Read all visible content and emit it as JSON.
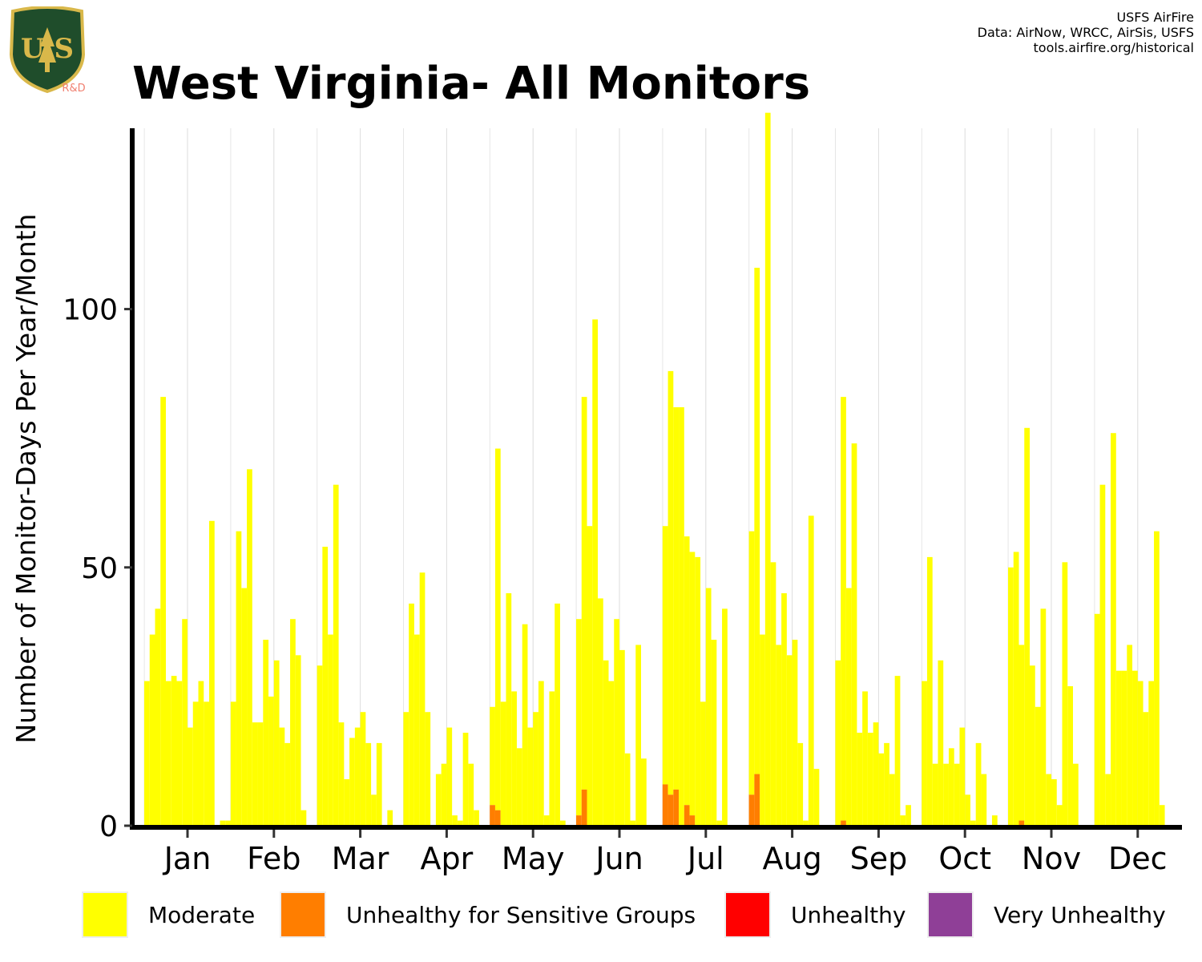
{
  "header": {
    "title": "West Virginia- All Monitors",
    "logo_text": "U S",
    "logo_badge_text": "R&D",
    "credits": [
      "USFS AirFire",
      "Data: AirNow, WRCC, AirSis, USFS",
      "tools.airfire.org/historical"
    ]
  },
  "colors": {
    "moderate": "#FFFF00",
    "usg": "#FF7E00",
    "unhealthy": "#FF0000",
    "very_unhealthy": "#8F3F97",
    "logo_green": "#1f4d2b",
    "logo_gold": "#d9b84a",
    "badge_text": "#f08070"
  },
  "chart_data": {
    "type": "bar",
    "stacked": true,
    "title": "West Virginia- All Monitors",
    "xlabel": "",
    "ylabel": "Number of Monitor-Days Per Year/Month",
    "ylim": [
      0,
      135
    ],
    "yticks": [
      0,
      50,
      100
    ],
    "grid": "vertical minor lines",
    "legend_position": "bottom",
    "months": [
      "Jan",
      "Feb",
      "Mar",
      "Apr",
      "May",
      "Jun",
      "Jul",
      "Aug",
      "Sep",
      "Oct",
      "Nov",
      "Dec"
    ],
    "series": [
      {
        "name": "Moderate",
        "values_by_month": [
          [
            28,
            37,
            42,
            83,
            28,
            29,
            28,
            40,
            19,
            24,
            28,
            24,
            59,
            0,
            1,
            1
          ],
          [
            24,
            57,
            46,
            69,
            20,
            20,
            36,
            25,
            32,
            19,
            16,
            40,
            33,
            3,
            0,
            0
          ],
          [
            31,
            54,
            37,
            66,
            20,
            9,
            17,
            19,
            22,
            16,
            6,
            16,
            0,
            3,
            0,
            0
          ],
          [
            22,
            43,
            37,
            49,
            22,
            0,
            10,
            12,
            19,
            2,
            1,
            18,
            12,
            3,
            0,
            0
          ],
          [
            19,
            70,
            24,
            45,
            26,
            15,
            39,
            19,
            22,
            28,
            2,
            26,
            43,
            1,
            0,
            0
          ],
          [
            38,
            76,
            58,
            98,
            44,
            32,
            28,
            40,
            34,
            14,
            1,
            35,
            13,
            0,
            0,
            0
          ],
          [
            50,
            82,
            74,
            81,
            52,
            51,
            52,
            24,
            46,
            36,
            1,
            42,
            0,
            0,
            0,
            0
          ],
          [
            51,
            98,
            37,
            138,
            51,
            35,
            45,
            33,
            36,
            16,
            1,
            60,
            11,
            0,
            0,
            0
          ],
          [
            32,
            82,
            46,
            74,
            18,
            26,
            18,
            20,
            14,
            16,
            10,
            29,
            2,
            4,
            0,
            0
          ],
          [
            28,
            52,
            12,
            32,
            12,
            15,
            12,
            19,
            6,
            1,
            16,
            10,
            0,
            2,
            0,
            0
          ],
          [
            50,
            53,
            34,
            77,
            31,
            23,
            42,
            10,
            9,
            4,
            51,
            27,
            12,
            0,
            0,
            0
          ],
          [
            41,
            66,
            10,
            76,
            30,
            30,
            35,
            30,
            28,
            22,
            28,
            57,
            4,
            0,
            0,
            0
          ]
        ]
      },
      {
        "name": "Unhealthy for Sensitive Groups",
        "values_by_month": [
          [
            0,
            0,
            0,
            0,
            0,
            0,
            0,
            0,
            0,
            0,
            0,
            0,
            0,
            0,
            0,
            0
          ],
          [
            0,
            0,
            0,
            0,
            0,
            0,
            0,
            0,
            0,
            0,
            0,
            0,
            0,
            0,
            0,
            0
          ],
          [
            0,
            0,
            0,
            0,
            0,
            0,
            0,
            0,
            0,
            0,
            0,
            0,
            0,
            0,
            0,
            0
          ],
          [
            0,
            0,
            0,
            0,
            0,
            0,
            0,
            0,
            0,
            0,
            0,
            0,
            0,
            0,
            0,
            0
          ],
          [
            4,
            3,
            0,
            0,
            0,
            0,
            0,
            0,
            0,
            0,
            0,
            0,
            0,
            0,
            0,
            0
          ],
          [
            2,
            7,
            0,
            0,
            0,
            0,
            0,
            0,
            0,
            0,
            0,
            0,
            0,
            0,
            0,
            0
          ],
          [
            8,
            6,
            7,
            0,
            4,
            2,
            0,
            0,
            0,
            0,
            0,
            0,
            0,
            0,
            0,
            0
          ],
          [
            6,
            10,
            0,
            0,
            0,
            0,
            0,
            0,
            0,
            0,
            0,
            0,
            0,
            0,
            0,
            0
          ],
          [
            0,
            1,
            0,
            0,
            0,
            0,
            0,
            0,
            0,
            0,
            0,
            0,
            0,
            0,
            0,
            0
          ],
          [
            0,
            0,
            0,
            0,
            0,
            0,
            0,
            0,
            0,
            0,
            0,
            0,
            0,
            0,
            0,
            0
          ],
          [
            0,
            0,
            1,
            0,
            0,
            0,
            0,
            0,
            0,
            0,
            0,
            0,
            0,
            0,
            0,
            0
          ],
          [
            0,
            0,
            0,
            0,
            0,
            0,
            0,
            0,
            0,
            0,
            0,
            0,
            0,
            0,
            0,
            0
          ]
        ]
      },
      {
        "name": "Unhealthy",
        "values_by_month": []
      },
      {
        "name": "Very Unhealthy",
        "values_by_month": []
      }
    ]
  },
  "legend": {
    "items": [
      {
        "label": "Moderate",
        "color_key": "moderate"
      },
      {
        "label": "Unhealthy for Sensitive Groups",
        "color_key": "usg"
      },
      {
        "label": "Unhealthy",
        "color_key": "unhealthy"
      },
      {
        "label": "Very Unhealthy",
        "color_key": "very_unhealthy"
      }
    ]
  }
}
